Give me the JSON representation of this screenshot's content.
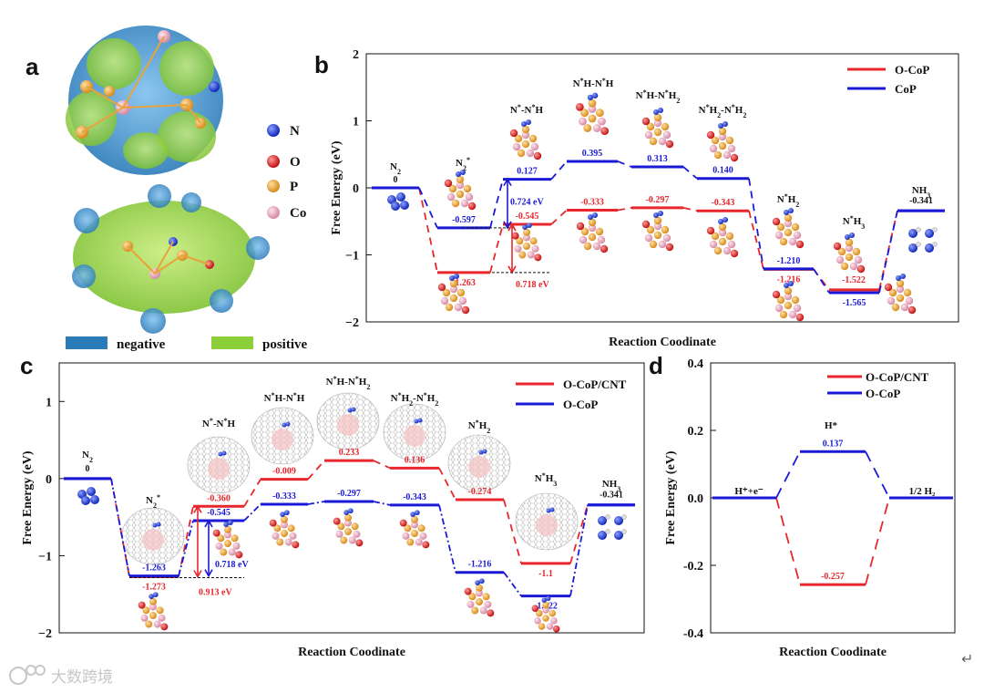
{
  "colors": {
    "red": "#e8262c",
    "blue": "#1a1ad6",
    "black": "#111111",
    "grid_gray": "#9aa0a6"
  },
  "panel_a": {
    "label": "a",
    "legend": [
      {
        "symbol": "N",
        "color": "#1f3bd6"
      },
      {
        "symbol": "O",
        "color": "#e31a1c"
      },
      {
        "symbol": "P",
        "color": "#e8a33a"
      },
      {
        "symbol": "Co",
        "color": "#e7a0b4"
      }
    ],
    "charge_legend": [
      {
        "label": "negative",
        "color": "#2b7bb9"
      },
      {
        "label": "positive",
        "color": "#8ccf3a"
      }
    ]
  },
  "watermark": "大数跨境",
  "return_glyph": "↵",
  "chart_data": [
    {
      "panel": "b",
      "type": "line",
      "xlabel": "Reaction Coodinate",
      "ylabel": "Free Energy (eV)",
      "ylim": [
        -2,
        2
      ],
      "yticks": [
        "2",
        "1",
        "0",
        "−1",
        "−2"
      ],
      "states": [
        "N2",
        "N2*",
        "N*-N*H",
        "N*H-N*H",
        "N*H-N*H2",
        "N*H2-N*H2",
        "N*H2",
        "N*H3",
        "NH3"
      ],
      "series": [
        {
          "name": "O-CoP",
          "color": "red",
          "values": [
            0,
            -1.263,
            -0.545,
            -0.333,
            -0.297,
            -0.343,
            -1.216,
            -1.522,
            -0.341
          ],
          "labels": [
            "",
            "-1.263",
            "-0.545",
            "-0.333",
            "-0.297",
            "-0.343",
            "-1.216",
            "",
            ""
          ]
        },
        {
          "name": "CoP",
          "color": "blue",
          "values": [
            0,
            -0.597,
            0.127,
            0.395,
            0.313,
            0.14,
            -1.21,
            -1.565,
            -0.341
          ],
          "labels": [
            "",
            "-0.597",
            "0.127",
            "0.395",
            "0.313",
            "0.140",
            "-1.210",
            "-1.565",
            ""
          ]
        }
      ],
      "common_labels": {
        "N2": "0",
        "N*H3": "-1.522",
        "NH3": "-0.341"
      },
      "state_names": [
        "N2",
        "N2*",
        "N*-N*H",
        "N*H-N*H",
        "N*H-N*H2",
        "N*H2-N*H2",
        "N*H2",
        "N*H3",
        "NH3"
      ],
      "annotations": [
        {
          "text": "0.724 eV",
          "color": "blue"
        },
        {
          "text": "0.718 eV",
          "color": "red"
        }
      ]
    },
    {
      "panel": "c",
      "type": "line",
      "xlabel": "Reaction Coodinate",
      "ylabel": "Free Energy (eV)",
      "ylim": [
        -2,
        1.5
      ],
      "yticks": [
        "1",
        "0",
        "−1",
        "−2"
      ],
      "states": [
        "N2",
        "N2*",
        "N*-N*H",
        "N*H-N*H",
        "N*H-N*H2",
        "N*H2-N*H2",
        "N*H2",
        "N*H3",
        "NH3"
      ],
      "series": [
        {
          "name": "O-CoP/CNT",
          "color": "red",
          "values": [
            0,
            -1.273,
            -0.36,
            -0.009,
            0.233,
            0.136,
            -0.274,
            -1.1,
            -0.341
          ],
          "labels": [
            "",
            "-1.273",
            "-0.360",
            "-0.009",
            "0.233",
            "0.136",
            "-0.274",
            "-1.1",
            ""
          ]
        },
        {
          "name": "O-CoP",
          "color": "blue",
          "values": [
            0,
            -1.263,
            -0.545,
            -0.333,
            -0.297,
            -0.343,
            -1.216,
            -1.522,
            -0.341
          ],
          "labels": [
            "",
            "-1.263",
            "-0.545",
            "-0.333",
            "-0.297",
            "-0.343",
            "-1.216",
            "-1.522",
            ""
          ]
        }
      ],
      "common_labels": {
        "N2": "0",
        "NH3": "-0.341"
      },
      "state_names": [
        "N2",
        "N2*",
        "N*-N*H",
        "N*H-N*H",
        "N*H-N*H2",
        "N*H2-N*H2",
        "N*H2",
        "N*H3",
        "NH3"
      ],
      "annotations": [
        {
          "text": "0.718 eV",
          "color": "blue"
        },
        {
          "text": "0.913 eV",
          "color": "red"
        }
      ]
    },
    {
      "panel": "d",
      "type": "line",
      "xlabel": "Reaction Coodinate",
      "ylabel": "Free Energy (eV)",
      "ylim": [
        -0.4,
        0.4
      ],
      "yticks": [
        "0.4",
        "0.2",
        "0.0",
        "-0.2",
        "-0.4"
      ],
      "states": [
        "H+ + e-",
        "H*",
        "1/2 H2"
      ],
      "state_names": [
        "H⁺+e⁻",
        "H*",
        "1/2 H₂"
      ],
      "series": [
        {
          "name": "O-CoP/CNT",
          "color": "red",
          "values": [
            0,
            -0.257,
            0
          ],
          "labels": [
            "",
            "-0.257",
            ""
          ]
        },
        {
          "name": "O-CoP",
          "color": "blue",
          "values": [
            0,
            0.137,
            0
          ],
          "labels": [
            "",
            "0.137",
            ""
          ]
        }
      ]
    }
  ]
}
